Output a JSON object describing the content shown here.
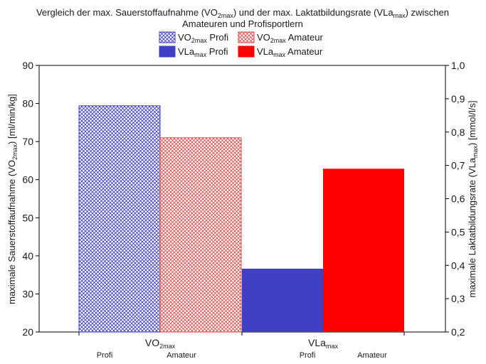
{
  "chart_data": {
    "type": "bar",
    "title_lines": [
      [
        "Vergleich der max. Sauerstoffaufnahme (VO",
        "2max",
        ") und der max. Laktatbildungsrate (VLa",
        "max",
        ") zwischen"
      ],
      [
        "Amateuren und Profisportlern"
      ]
    ],
    "legend": [
      {
        "base": "VO",
        "sub": "2max",
        "rest": " Profi",
        "color": "#3b3bbf",
        "style": "hatched"
      },
      {
        "base": "VO",
        "sub": "2max",
        "rest": " Amateur",
        "color": "#d94a4a",
        "style": "hatched"
      },
      {
        "base": "VLa",
        "sub": "max",
        "rest": " Profi",
        "color": "#4040c4",
        "style": "solid"
      },
      {
        "base": "VLa",
        "sub": "max",
        "rest": " Amateur",
        "color": "#ff0000",
        "style": "solid"
      }
    ],
    "left_axis": {
      "label_parts": [
        "maximale Sauerstoffaufnahme (VO",
        "2max",
        ") [ml/min/kg]"
      ],
      "ylim": [
        20,
        90
      ],
      "ticks": [
        "20",
        "30",
        "40",
        "50",
        "60",
        "70",
        "80",
        "90"
      ]
    },
    "right_axis": {
      "label_parts": [
        "maximale Laktatbildungsrate (VLa",
        "max",
        ") [mmol/l/s]"
      ],
      "ylim": [
        0.2,
        1.0
      ],
      "ticks": [
        "0,2",
        "0,3",
        "0,4",
        "0,5",
        "0,6",
        "0,7",
        "0,8",
        "0,9",
        "1,0"
      ]
    },
    "categories": [
      {
        "base": "VO",
        "sub": "2max"
      },
      {
        "base": "VLa",
        "sub": "max"
      }
    ],
    "group_labels": [
      "Profi",
      "Amateur"
    ],
    "bars": [
      {
        "category": 0,
        "group": 0,
        "value": 79.4,
        "axis": "left",
        "color": "#3b3bbf",
        "style": "hatched"
      },
      {
        "category": 0,
        "group": 1,
        "value": 71.0,
        "axis": "left",
        "color": "#d94a4a",
        "style": "hatched"
      },
      {
        "category": 1,
        "group": 0,
        "value": 0.39,
        "axis": "right",
        "color": "#4040c4",
        "style": "solid"
      },
      {
        "category": 1,
        "group": 1,
        "value": 0.69,
        "axis": "right",
        "color": "#ff0000",
        "style": "solid"
      }
    ],
    "grid": false
  }
}
